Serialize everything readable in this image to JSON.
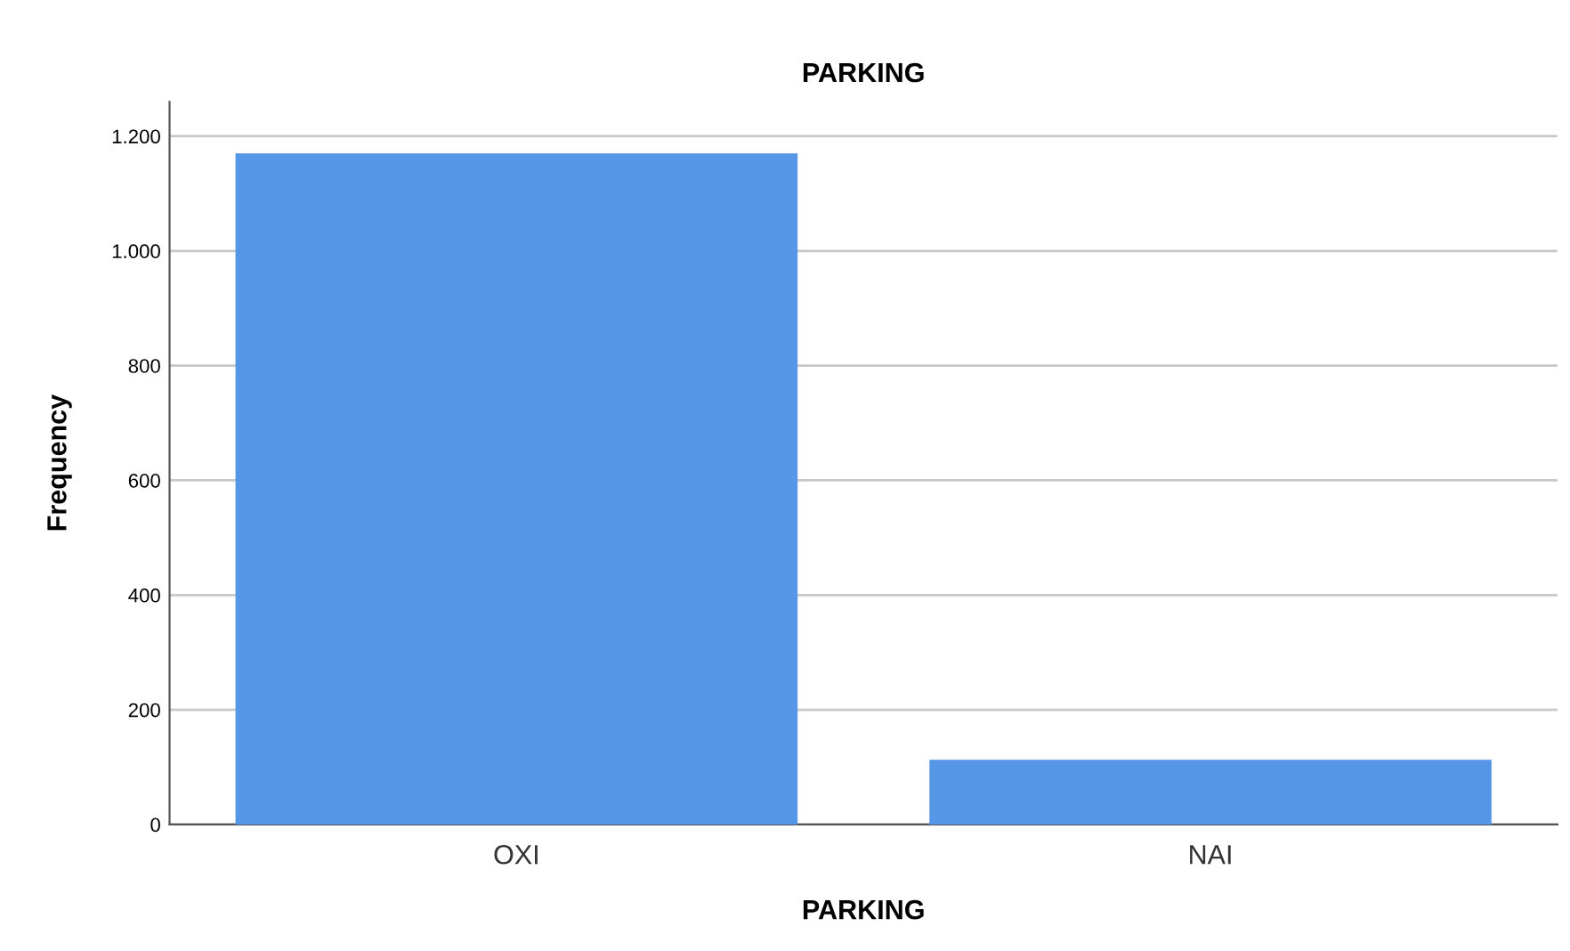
{
  "chart_data": {
    "type": "bar",
    "title": "PARKING",
    "xlabel": "PARKING",
    "ylabel": "Frequency",
    "categories": [
      "OXI",
      "NAI"
    ],
    "values": [
      1170,
      113
    ],
    "color": "#5596e6",
    "ylim": [
      0,
      1260
    ],
    "yticks": [
      0,
      200,
      400,
      600,
      800,
      {
        "value": 1000,
        "label": "1.000"
      },
      {
        "value": 1200,
        "label": "1.200"
      }
    ],
    "grid": "y"
  }
}
